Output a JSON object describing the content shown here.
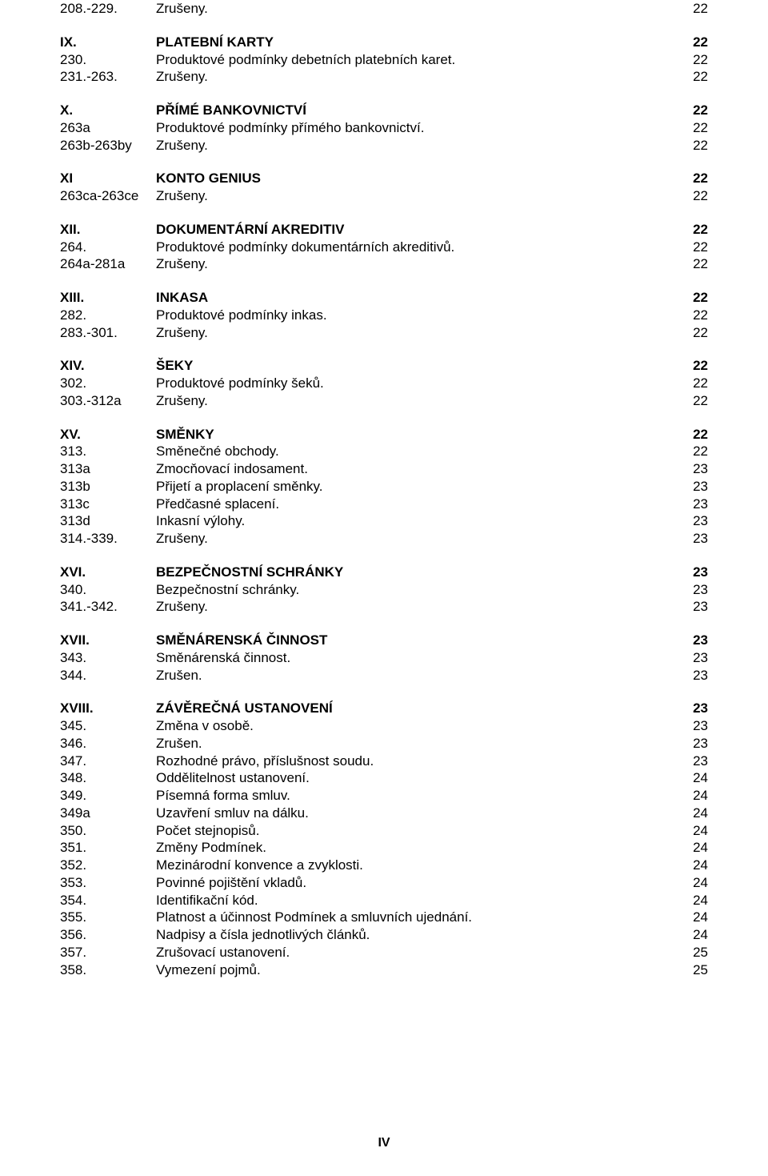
{
  "footer": "IV",
  "groups": [
    {
      "rows": [
        {
          "num": "208.-229.",
          "title": "Zrušeny.",
          "page": "22",
          "heading": false
        }
      ]
    },
    {
      "rows": [
        {
          "num": "IX.",
          "title": "PLATEBNÍ KARTY",
          "page": "22",
          "heading": true
        },
        {
          "num": "230.",
          "title": "Produktové podmínky debetních platebních karet.",
          "page": "22",
          "heading": false
        },
        {
          "num": "231.-263.",
          "title": "Zrušeny.",
          "page": "22",
          "heading": false
        }
      ]
    },
    {
      "rows": [
        {
          "num": "X.",
          "title": "PŘÍMÉ BANKOVNICTVÍ",
          "page": "22",
          "heading": true
        },
        {
          "num": "263a",
          "title": "Produktové podmínky přímého bankovnictví.",
          "page": "22",
          "heading": false
        },
        {
          "num": "263b-263by",
          "title": "Zrušeny.",
          "page": "22",
          "heading": false
        }
      ]
    },
    {
      "rows": [
        {
          "num": "XI",
          "title": "KONTO GENIUS",
          "page": "22",
          "heading": true
        },
        {
          "num": "263ca-263ce",
          "title": "Zrušeny.",
          "page": "22",
          "heading": false
        }
      ]
    },
    {
      "rows": [
        {
          "num": "XII.",
          "title": "DOKUMENTÁRNÍ AKREDITIV",
          "page": "22",
          "heading": true
        },
        {
          "num": "264.",
          "title": "Produktové podmínky dokumentárních akreditivů.",
          "page": "22",
          "heading": false
        },
        {
          "num": "264a-281a",
          "title": "Zrušeny.",
          "page": "22",
          "heading": false
        }
      ]
    },
    {
      "rows": [
        {
          "num": "XIII.",
          "title": "INKASA",
          "page": "22",
          "heading": true
        },
        {
          "num": "282.",
          "title": "Produktové podmínky inkas.",
          "page": "22",
          "heading": false
        },
        {
          "num": "283.-301.",
          "title": "Zrušeny.",
          "page": "22",
          "heading": false
        }
      ]
    },
    {
      "rows": [
        {
          "num": "XIV.",
          "title": "ŠEKY",
          "page": "22",
          "heading": true
        },
        {
          "num": "302.",
          "title": "Produktové podmínky šeků.",
          "page": "22",
          "heading": false
        },
        {
          "num": "303.-312a",
          "title": "Zrušeny.",
          "page": "22",
          "heading": false
        }
      ]
    },
    {
      "rows": [
        {
          "num": "XV.",
          "title": "SMĚNKY",
          "page": "22",
          "heading": true
        },
        {
          "num": "313.",
          "title": "Směnečné obchody.",
          "page": "22",
          "heading": false
        },
        {
          "num": "313a",
          "title": "Zmocňovací indosament.",
          "page": "23",
          "heading": false
        },
        {
          "num": "313b",
          "title": "Přijetí a proplacení směnky.",
          "page": "23",
          "heading": false
        },
        {
          "num": "313c",
          "title": "Předčasné splacení.",
          "page": "23",
          "heading": false
        },
        {
          "num": "313d",
          "title": "Inkasní výlohy.",
          "page": "23",
          "heading": false
        },
        {
          "num": "314.-339.",
          "title": "Zrušeny.",
          "page": "23",
          "heading": false
        }
      ]
    },
    {
      "rows": [
        {
          "num": "XVI.",
          "title": "BEZPEČNOSTNÍ SCHRÁNKY",
          "page": "23",
          "heading": true
        },
        {
          "num": "340.",
          "title": "Bezpečnostní schránky.",
          "page": "23",
          "heading": false
        },
        {
          "num": "341.-342.",
          "title": "Zrušeny.",
          "page": "23",
          "heading": false
        }
      ]
    },
    {
      "rows": [
        {
          "num": "XVII.",
          "title": "SMĚNÁRENSKÁ ČINNOST",
          "page": "23",
          "heading": true
        },
        {
          "num": "343.",
          "title": "Směnárenská činnost.",
          "page": "23",
          "heading": false
        },
        {
          "num": "344.",
          "title": "Zrušen.",
          "page": "23",
          "heading": false
        }
      ]
    },
    {
      "rows": [
        {
          "num": "XVIII.",
          "title": "ZÁVĚREČNÁ USTANOVENÍ",
          "page": "23",
          "heading": true
        },
        {
          "num": "345.",
          "title": "Změna v osobě.",
          "page": "23",
          "heading": false
        },
        {
          "num": "346.",
          "title": "Zrušen.",
          "page": "23",
          "heading": false
        },
        {
          "num": "347.",
          "title": "Rozhodné právo, příslušnost soudu.",
          "page": "23",
          "heading": false
        },
        {
          "num": "348.",
          "title": "Oddělitelnost ustanovení.",
          "page": "24",
          "heading": false
        },
        {
          "num": "349.",
          "title": "Písemná forma smluv.",
          "page": "24",
          "heading": false
        },
        {
          "num": "349a",
          "title": "Uzavření smluv na dálku.",
          "page": "24",
          "heading": false
        },
        {
          "num": "350.",
          "title": "Počet stejnopisů.",
          "page": "24",
          "heading": false
        },
        {
          "num": "351.",
          "title": "Změny Podmínek.",
          "page": "24",
          "heading": false
        },
        {
          "num": "352.",
          "title": "Mezinárodní konvence a zvyklosti.",
          "page": "24",
          "heading": false
        },
        {
          "num": "353.",
          "title": "Povinné pojištění vkladů.",
          "page": "24",
          "heading": false
        },
        {
          "num": "354.",
          "title": "Identifikační kód.",
          "page": "24",
          "heading": false
        },
        {
          "num": "355.",
          "title": "Platnost a účinnost Podmínek a smluvních ujednání.",
          "page": "24",
          "heading": false
        },
        {
          "num": "356.",
          "title": "Nadpisy a čísla jednotlivých článků.",
          "page": "24",
          "heading": false
        },
        {
          "num": "357.",
          "title": "Zrušovací ustanovení.",
          "page": "25",
          "heading": false
        },
        {
          "num": "358.",
          "title": "Vymezení pojmů.",
          "page": "25",
          "heading": false
        }
      ]
    }
  ]
}
